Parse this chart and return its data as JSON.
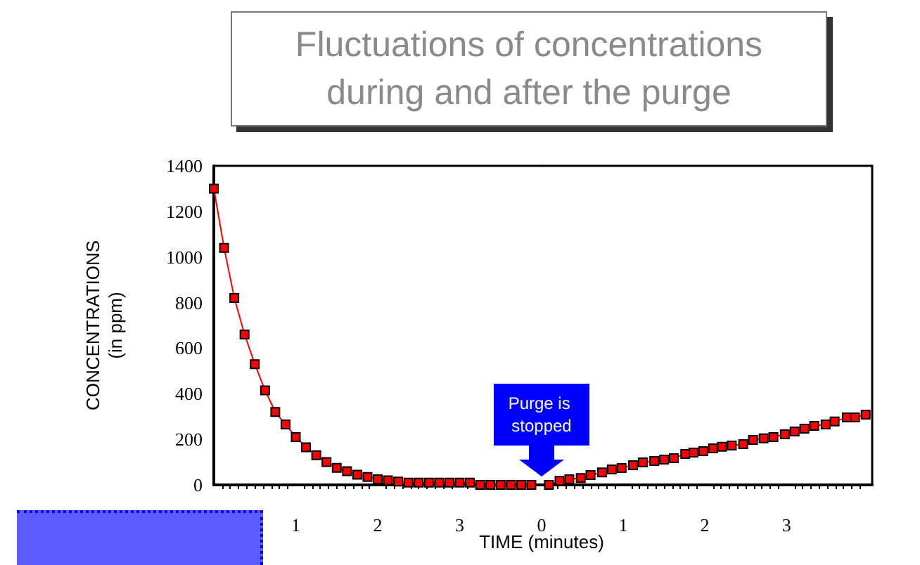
{
  "chart_data": [
    {
      "type": "line",
      "title": "Fluctuations of concentrations\nduring and after the purge",
      "ylabel": "CONCENTRATIONS\n(in ppm)",
      "xlim": [
        0,
        4
      ],
      "xticks": [
        1,
        2,
        3
      ],
      "ylim": [
        0,
        1400
      ],
      "yticks": [
        0,
        200,
        400,
        600,
        800,
        1000,
        1200,
        1400
      ],
      "marker": "square",
      "line_style": "solid",
      "series": [
        {
          "color": "#ff0000",
          "x": [
            0,
            0.125,
            0.25,
            0.375,
            0.5,
            0.625,
            0.75,
            0.875,
            1,
            1.125,
            1.25,
            1.375,
            1.5,
            1.625,
            1.75,
            1.875,
            2,
            2.125,
            2.25,
            2.375,
            2.5,
            2.625,
            2.75,
            2.875,
            3,
            3.125,
            3.25,
            3.375,
            3.5,
            3.625,
            3.75,
            3.875
          ],
          "values": [
            1300,
            1040,
            820,
            660,
            530,
            415,
            320,
            265,
            210,
            165,
            130,
            100,
            75,
            60,
            45,
            35,
            25,
            20,
            15,
            10,
            10,
            10,
            10,
            10,
            10,
            10,
            0,
            0,
            0,
            0,
            0,
            0
          ]
        }
      ]
    },
    {
      "type": "line",
      "xlabel": "TIME (minutes)",
      "xlim": [
        0,
        4.05
      ],
      "xticks": [
        0,
        1,
        2,
        3
      ],
      "ylim": [
        0,
        1400
      ],
      "tick_labels": "x",
      "marker": "square",
      "line_style": "solid",
      "annotations": [
        "Purge is stopped"
      ],
      "series": [
        {
          "color": "#ff0000",
          "x": [
            0.09,
            0.22,
            0.34,
            0.48,
            0.6,
            0.74,
            0.86,
            0.98,
            1.12,
            1.24,
            1.38,
            1.5,
            1.62,
            1.76,
            1.86,
            1.98,
            2.1,
            2.21,
            2.33,
            2.47,
            2.59,
            2.72,
            2.84,
            2.98,
            3.1,
            3.22,
            3.34,
            3.48,
            3.59,
            3.74,
            3.84,
            3.97
          ],
          "values": [
            0,
            18,
            25,
            30,
            43,
            55,
            68,
            74,
            86,
            99,
            105,
            111,
            117,
            136,
            142,
            148,
            160,
            167,
            173,
            179,
            197,
            204,
            210,
            222,
            234,
            247,
            259,
            265,
            278,
            296,
            296,
            308
          ]
        }
      ]
    }
  ]
}
